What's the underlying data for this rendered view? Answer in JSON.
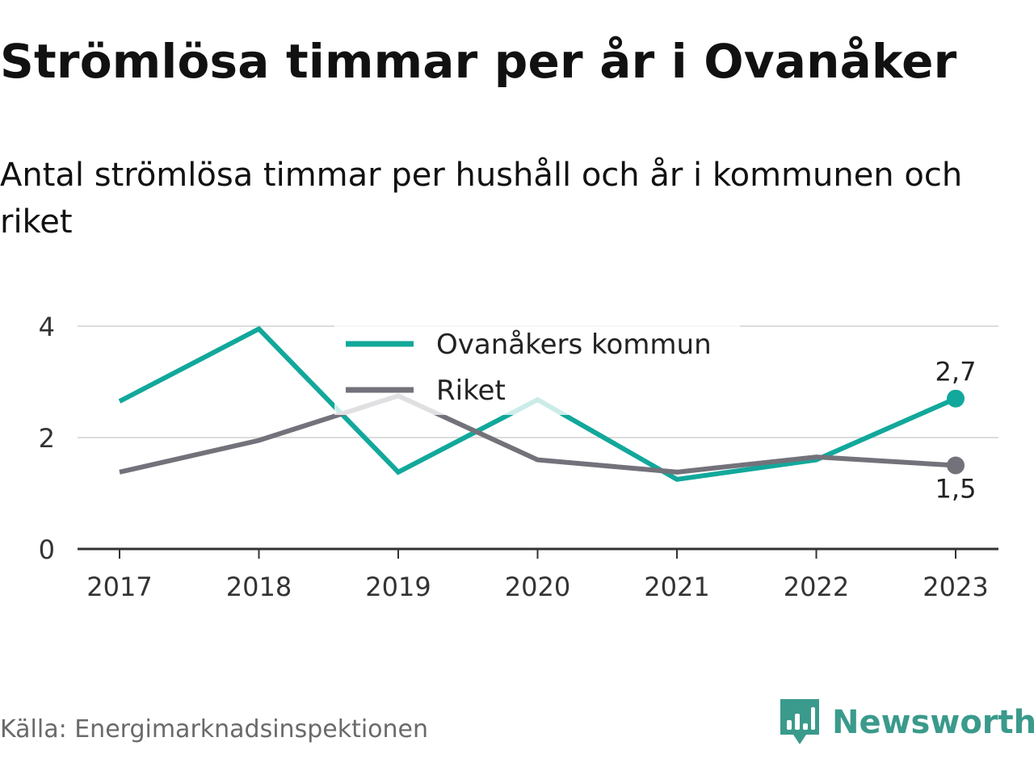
{
  "title": "Strömlösa timmar per år i Ovanåker",
  "subtitle": "Antal strömlösa timmar per hushåll och år i kommunen och riket",
  "source": "Källa: Energimarknadsinspektionen",
  "brand": {
    "name": "Newsworthy",
    "icon": "newsworthy-logo-icon",
    "color": "#3a9a8c"
  },
  "colors": {
    "kommun": "#12a89b",
    "riket": "#73727b",
    "grid": "#dcdcdc",
    "axis": "#333333"
  },
  "chart_data": {
    "type": "line",
    "x": [
      "2017",
      "2018",
      "2019",
      "2020",
      "2021",
      "2022",
      "2023"
    ],
    "series": [
      {
        "name": "Ovanåkers kommun",
        "values": [
          2.65,
          3.95,
          1.38,
          2.68,
          1.25,
          1.6,
          2.7
        ]
      },
      {
        "name": "Riket",
        "values": [
          1.38,
          1.95,
          2.75,
          1.6,
          1.38,
          1.65,
          1.5
        ]
      }
    ],
    "ylim": [
      0,
      4
    ],
    "yticks": [
      "0",
      "2",
      "4"
    ],
    "end_labels": [
      "2,7",
      "1,5"
    ],
    "legend_placement": "top-center",
    "grid": true
  }
}
